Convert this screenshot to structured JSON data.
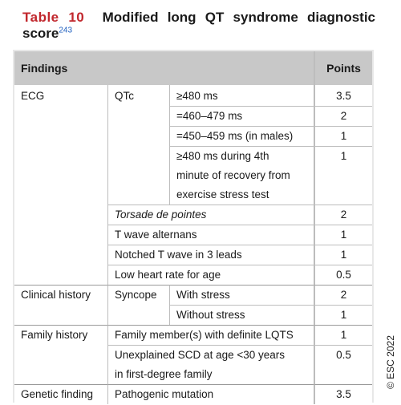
{
  "title": {
    "label": "Table 10",
    "text": "Modified long QT syndrome diagnostic score",
    "ref": "243"
  },
  "table": {
    "headers": {
      "findings": "Findings",
      "points": "Points"
    },
    "ecg": {
      "category": "ECG",
      "qtc_label": "QTc",
      "qtc_rows": [
        {
          "criterion": "≥480 ms",
          "points": "3.5"
        },
        {
          "criterion": "=460–479 ms",
          "points": "2"
        },
        {
          "criterion": "=450–459 ms (in males)",
          "points": "1"
        },
        {
          "criterion": "≥480 ms during 4th minute of recovery from exercise stress test",
          "points": "1"
        }
      ],
      "other_rows": [
        {
          "criterion": "Torsade de pointes",
          "points": "2"
        },
        {
          "criterion": "T wave alternans",
          "points": "1"
        },
        {
          "criterion": "Notched T wave in 3 leads",
          "points": "1"
        },
        {
          "criterion": "Low heart rate for age",
          "points": "0.5"
        }
      ]
    },
    "clinical": {
      "category": "Clinical history",
      "sub": "Syncope",
      "rows": [
        {
          "criterion": "With stress",
          "points": "2"
        },
        {
          "criterion": "Without stress",
          "points": "1"
        }
      ]
    },
    "family": {
      "category": "Family history",
      "rows": [
        {
          "criterion": "Family member(s) with definite LQTS",
          "points": "1"
        },
        {
          "criterion": "Unexplained SCD at age <30 years in first-degree family",
          "points": "0.5"
        }
      ]
    },
    "genetic": {
      "category": "Genetic finding",
      "rows": [
        {
          "criterion": "Pathogenic mutation",
          "points": "3.5"
        }
      ]
    }
  },
  "copyright": "© ESC 2022"
}
